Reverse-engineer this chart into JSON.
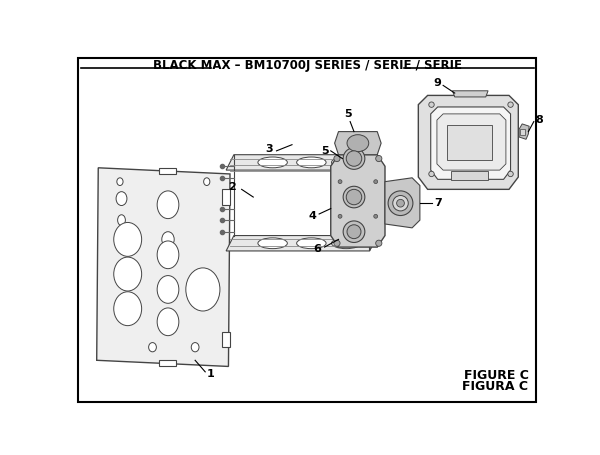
{
  "title": "BLACK MAX – BM10700J SERIES / SÉRIE / SERIE",
  "figure_label": "FIGURE C",
  "figura_label": "FIGURA C",
  "bg_color": "#ffffff",
  "line_color": "#000000",
  "part_edge": "#444444",
  "title_fontsize": 8.5,
  "label_fontsize": 8,
  "fig_label_fontsize": 9
}
